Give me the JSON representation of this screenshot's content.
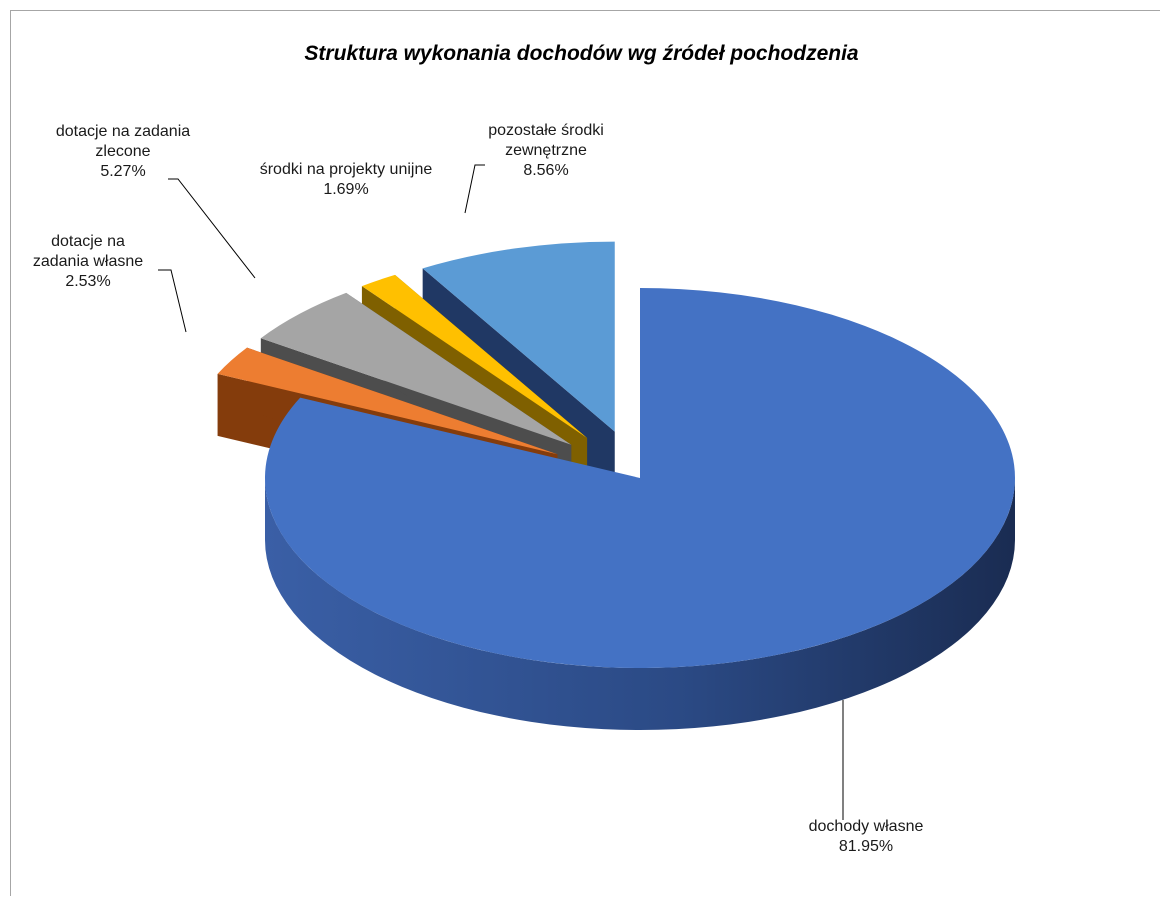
{
  "chart_data": {
    "type": "pie",
    "title": "Struktura wykonania dochodów wg źródeł pochodzenia",
    "slices": [
      {
        "label_lines": [
          "dochody własne"
        ],
        "value": 81.95,
        "value_text": "81.95%",
        "color": "#4472c4",
        "dark": "#1f3864"
      },
      {
        "label_lines": [
          "dotacje na",
          "zadania własne"
        ],
        "value": 2.53,
        "value_text": "2.53%",
        "color": "#ed7d31",
        "dark": "#843c0c"
      },
      {
        "label_lines": [
          "dotacje na zadania",
          "zlecone"
        ],
        "value": 5.27,
        "value_text": "5.27%",
        "color": "#a5a5a5",
        "dark": "#4d4d4d"
      },
      {
        "label_lines": [
          "środki na projekty unijne"
        ],
        "value": 1.69,
        "value_text": "1.69%",
        "color": "#ffc000",
        "dark": "#7f6000"
      },
      {
        "label_lines": [
          "pozostałe środki",
          "zewnętrzne"
        ],
        "value": 8.56,
        "value_text": "8.56%",
        "color": "#5b9bd5",
        "dark": "#203864"
      }
    ],
    "legend": "none",
    "exploded": true,
    "projection": "3d"
  }
}
